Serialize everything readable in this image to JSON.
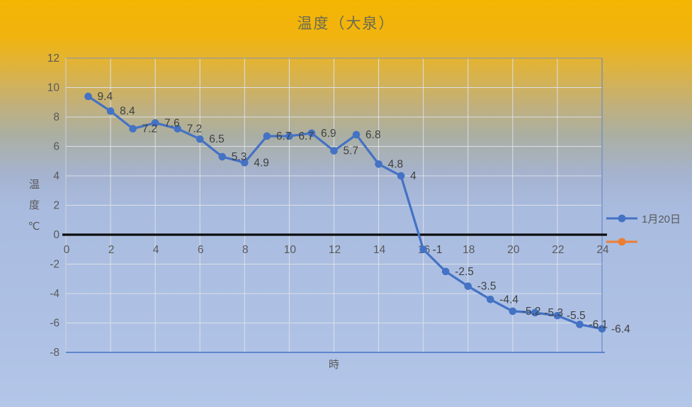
{
  "window": {
    "title": "温度（大泉）"
  },
  "chart_data": {
    "type": "line",
    "title": "温度（大泉）",
    "xlabel": "時",
    "ylabel": "温度℃",
    "x": [
      1,
      2,
      3,
      4,
      5,
      6,
      7,
      8,
      9,
      10,
      11,
      12,
      13,
      14,
      15,
      16,
      17,
      18,
      19,
      20,
      21,
      22,
      23,
      24
    ],
    "series": [
      {
        "name": "1月20日",
        "color": "#4472C4",
        "values": [
          9.4,
          8.4,
          7.2,
          7.6,
          7.2,
          6.5,
          5.3,
          4.9,
          6.7,
          6.7,
          6.9,
          5.7,
          6.8,
          4.8,
          4,
          -1,
          -2.5,
          -3.5,
          -4.4,
          -5.2,
          -5.3,
          -5.5,
          -6.1,
          -6.4
        ],
        "data_labels": [
          "9.4",
          "8.4",
          "7.2",
          "7.6",
          "7.2",
          "6.5",
          "5.3",
          "4.9",
          "6.7",
          "6.7",
          "6.9",
          "5.7",
          "6.8",
          "4.8",
          "4",
          "-1",
          "-2.5",
          "-3.5",
          "-4.4",
          "-5.2",
          "-5.3",
          "-5.5",
          "-6.1",
          "-6.4"
        ]
      },
      {
        "name": "",
        "color": "#ED7D31",
        "values": []
      }
    ],
    "xticks": [
      0,
      2,
      4,
      6,
      8,
      10,
      12,
      14,
      16,
      18,
      20,
      22,
      24
    ],
    "yticks": [
      12,
      10,
      8,
      6,
      4,
      2,
      0,
      -2,
      -4,
      -6,
      -8
    ],
    "xlim": [
      0,
      24
    ],
    "ylim": [
      -8,
      12
    ],
    "grid": true,
    "legend_position": "right",
    "colors": {
      "gridline": "#DCDFE6",
      "zero_line": "#0D0D0D",
      "tick_label": "#595959",
      "data_label": "#404040",
      "border_top": "#9A9B95",
      "border_left": "#CDD2DA",
      "border_right": "#5A7DBE",
      "border_bottom": "#4472C4"
    }
  }
}
